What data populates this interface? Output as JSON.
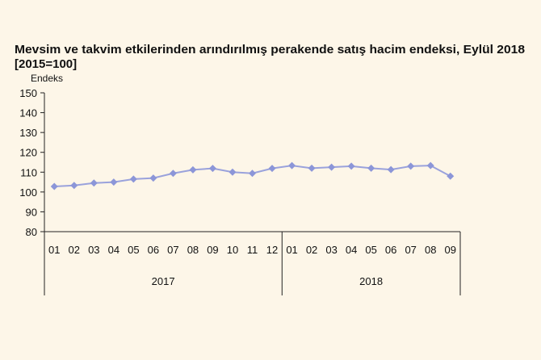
{
  "chart_data": {
    "type": "line",
    "title": "Mevsim ve takvim etkilerinden arındırılmış perakende satış hacim endeksi, Eylül 2018",
    "subtitle": "[2015=100]",
    "ylabel": "Endeks",
    "ylim": [
      80,
      150
    ],
    "yticks": [
      "80",
      "90",
      "100",
      "110",
      "120",
      "130",
      "140",
      "150"
    ],
    "grid": false,
    "categories": [
      "01",
      "02",
      "03",
      "04",
      "05",
      "06",
      "07",
      "08",
      "09",
      "10",
      "11",
      "12",
      "01",
      "02",
      "03",
      "04",
      "05",
      "06",
      "07",
      "08",
      "09"
    ],
    "groups": [
      {
        "label": "2017",
        "count": 12
      },
      {
        "label": "2018",
        "count": 9
      }
    ],
    "series": [
      {
        "values": [
          102.8,
          103.3,
          104.5,
          105.0,
          106.5,
          107.0,
          109.4,
          111.2,
          111.9,
          110.0,
          109.4,
          111.9,
          113.3,
          112.0,
          112.5,
          113.0,
          112.0,
          111.3,
          113.0,
          113.3,
          108.0
        ]
      }
    ],
    "colors": {
      "line": "#9aa2dc",
      "marker": "#8c96d8",
      "background": "#fdf6e8"
    }
  }
}
